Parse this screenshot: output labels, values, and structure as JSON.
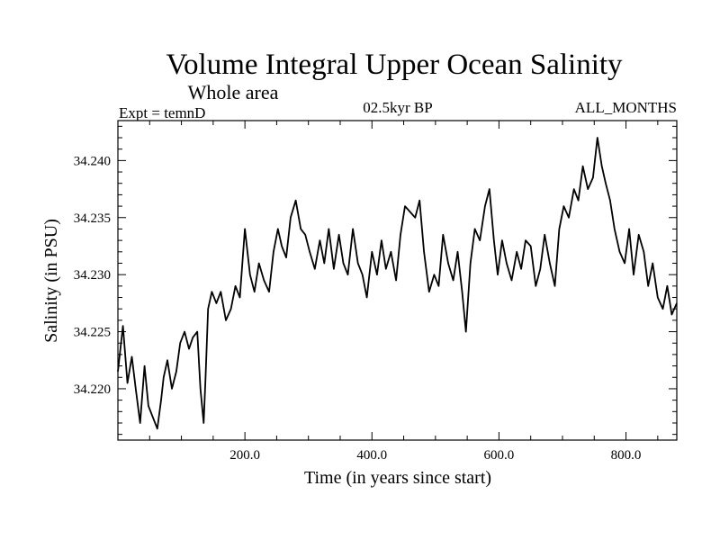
{
  "chart_data": {
    "type": "line",
    "title": "Volume Integral Upper Ocean Salinity",
    "subtitle": "Whole area",
    "left_header": "Expt = temnD",
    "center_header": "02.5kyr BP",
    "right_header": "ALL_MONTHS",
    "xlabel": "Time (in years since start)",
    "ylabel": "Salinity (in PSU)",
    "xlim": [
      0,
      880
    ],
    "ylim": [
      34.2155,
      34.2435
    ],
    "xticks": [
      200,
      400,
      600,
      800
    ],
    "xtick_labels": [
      "200.0",
      "400.0",
      "600.0",
      "800.0"
    ],
    "yticks": [
      34.22,
      34.225,
      34.23,
      34.235,
      34.24
    ],
    "ytick_labels": [
      "34.220",
      "34.225",
      "34.230",
      "34.235",
      "34.240"
    ],
    "series": [
      {
        "name": "Salinity",
        "x": [
          0,
          8,
          15,
          22,
          28,
          35,
          42,
          48,
          55,
          62,
          68,
          72,
          78,
          85,
          92,
          98,
          105,
          112,
          118,
          125,
          130,
          135,
          138,
          142,
          148,
          155,
          162,
          170,
          178,
          185,
          192,
          200,
          208,
          215,
          222,
          230,
          238,
          245,
          252,
          258,
          265,
          272,
          280,
          288,
          295,
          302,
          310,
          318,
          325,
          332,
          340,
          348,
          355,
          362,
          370,
          378,
          385,
          392,
          400,
          408,
          415,
          422,
          430,
          438,
          445,
          452,
          460,
          468,
          475,
          482,
          490,
          498,
          505,
          512,
          520,
          528,
          535,
          542,
          548,
          555,
          562,
          570,
          578,
          585,
          592,
          598,
          605,
          612,
          620,
          628,
          635,
          642,
          650,
          658,
          665,
          672,
          680,
          688,
          695,
          702,
          710,
          718,
          725,
          732,
          740,
          748,
          755,
          762,
          768,
          775,
          782,
          790,
          798,
          805,
          812,
          820,
          828,
          835,
          842,
          850,
          858,
          865,
          872,
          880
        ],
        "y": [
          34.2215,
          34.2255,
          34.2205,
          34.2228,
          34.22,
          34.217,
          34.222,
          34.2185,
          34.2175,
          34.2165,
          34.219,
          34.221,
          34.2225,
          34.22,
          34.2215,
          34.224,
          34.225,
          34.2235,
          34.2245,
          34.225,
          34.22,
          34.217,
          34.221,
          34.227,
          34.2285,
          34.2275,
          34.2285,
          34.226,
          34.227,
          34.229,
          34.228,
          34.234,
          34.23,
          34.2285,
          34.231,
          34.2295,
          34.2285,
          34.232,
          34.234,
          34.2325,
          34.2315,
          34.235,
          34.2365,
          34.234,
          34.2335,
          34.232,
          34.2305,
          34.233,
          34.231,
          34.234,
          34.2305,
          34.2335,
          34.231,
          34.23,
          34.234,
          34.231,
          34.23,
          34.228,
          34.232,
          34.23,
          34.233,
          34.2305,
          34.232,
          34.2295,
          34.2335,
          34.236,
          34.2355,
          34.235,
          34.2365,
          34.232,
          34.2285,
          34.23,
          34.229,
          34.2335,
          34.231,
          34.2295,
          34.232,
          34.2285,
          34.225,
          34.231,
          34.234,
          34.233,
          34.236,
          34.2375,
          34.233,
          34.23,
          34.233,
          34.231,
          34.2295,
          34.232,
          34.2305,
          34.233,
          34.2325,
          34.229,
          34.2305,
          34.2335,
          34.231,
          34.229,
          34.234,
          34.236,
          34.235,
          34.2375,
          34.2365,
          34.2395,
          34.2375,
          34.2385,
          34.242,
          34.2395,
          34.238,
          34.2365,
          34.234,
          34.232,
          34.231,
          34.234,
          34.23,
          34.2335,
          34.232,
          34.229,
          34.231,
          34.228,
          34.227,
          34.229,
          34.2265,
          34.2275
        ]
      }
    ]
  }
}
